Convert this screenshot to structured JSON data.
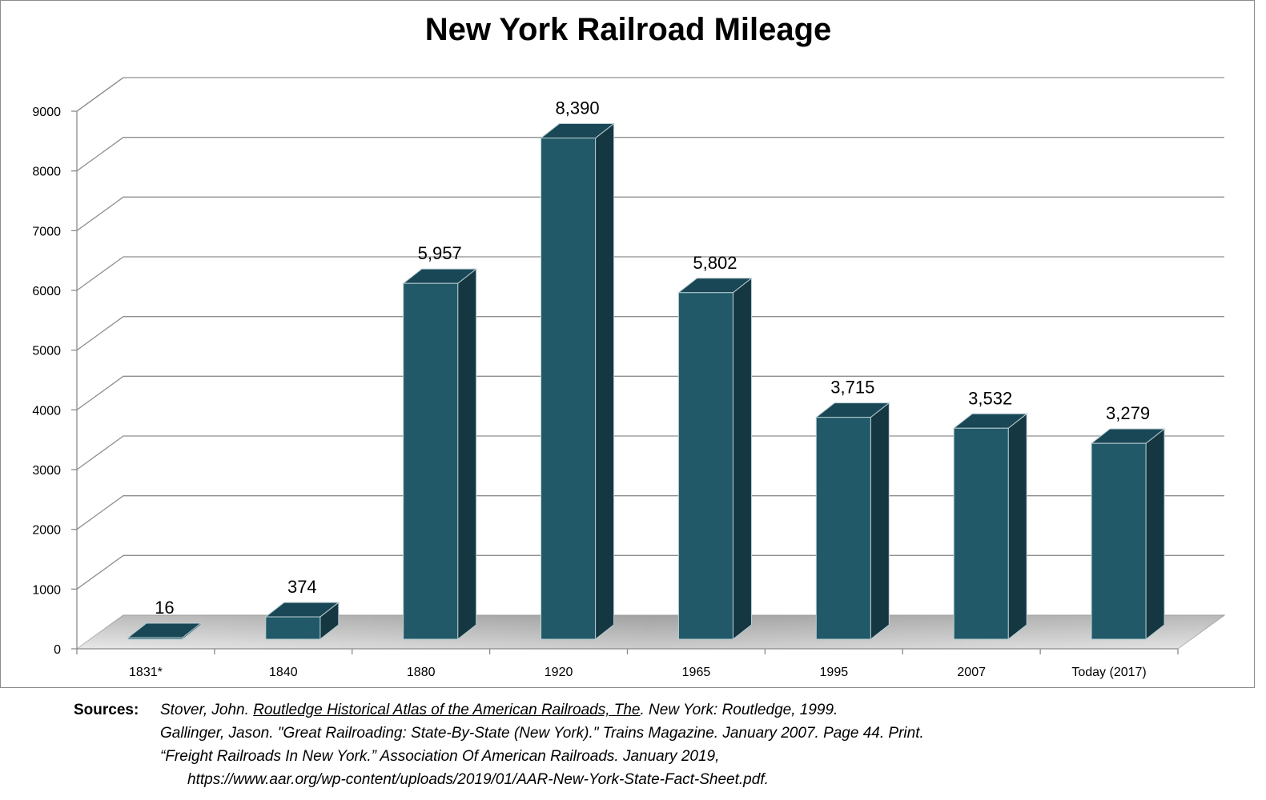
{
  "chart_data": {
    "type": "bar",
    "title": "New York Railroad Mileage",
    "categories": [
      "1831*",
      "1840",
      "1880",
      "1920",
      "1965",
      "1995",
      "2007",
      "Today  (2017)"
    ],
    "values": [
      16,
      374,
      5957,
      8390,
      5802,
      3715,
      3532,
      3279
    ],
    "value_labels": [
      "16",
      "374",
      "5,957",
      "8,390",
      "5,802",
      "3,715",
      "3,532",
      "3,279"
    ],
    "yticks": [
      "0",
      "1000",
      "2000",
      "3000",
      "4000",
      "5000",
      "6000",
      "7000",
      "8000",
      "9000"
    ],
    "ylim": [
      0,
      9000
    ],
    "grid": true,
    "style": "3d-column",
    "colors": {
      "bar_front": "#215968",
      "bar_side": "#153742",
      "bar_top": "#1a4755",
      "bar_edge": "#b8cdd3",
      "grid": "#8f8f8f",
      "floor": "#b0b0b0"
    }
  },
  "sources": {
    "label": "Sources:",
    "line1_prefix": "Stover, John. ",
    "line1_title": "Routledge Historical Atlas of the American Railroads, The",
    "line1_suffix": ". New York: Routledge, 1999.",
    "line2": "Gallinger, Jason. \"Great Railroading: State-By-State (New York).\" Trains Magazine. January 2007. Page 44. Print.",
    "line3": "“Freight Railroads In New York.” Association Of American Railroads. January 2019,",
    "line4": "https://www.aar.org/wp-content/uploads/2019/01/AAR-New-York-State-Fact-Sheet.pdf."
  }
}
